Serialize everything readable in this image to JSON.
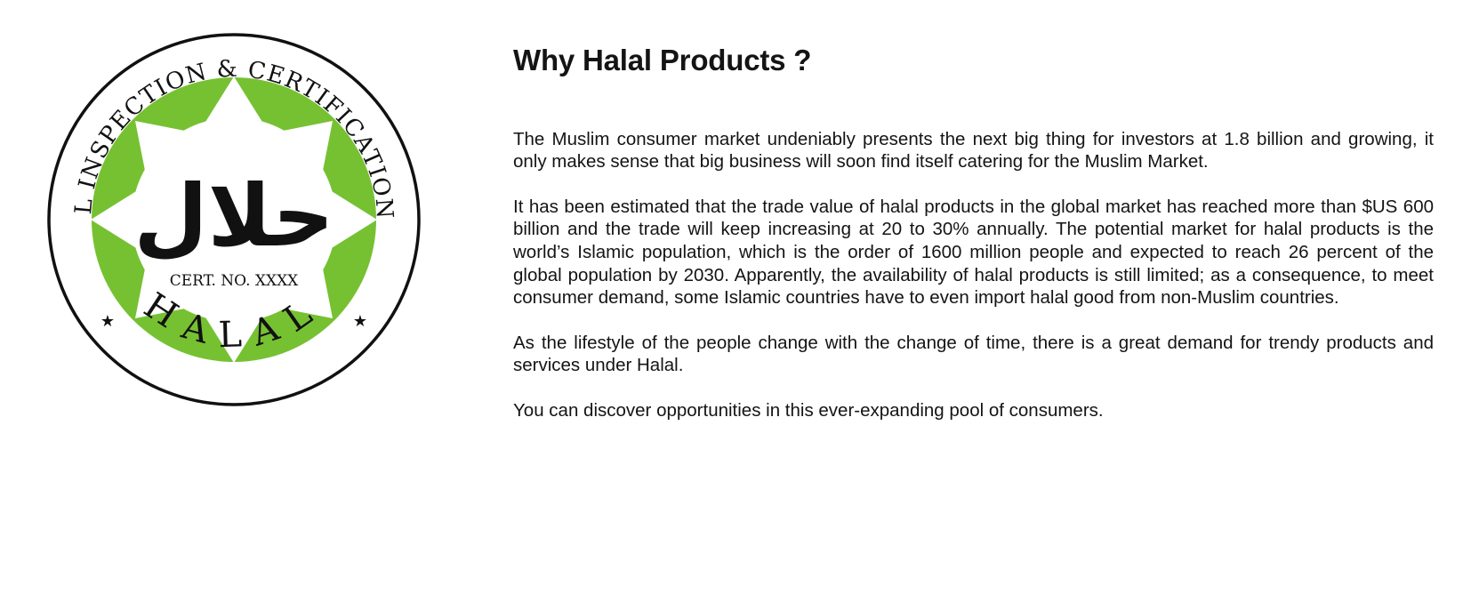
{
  "logo": {
    "top_text": "REGIONAL INSPECTION & CERTIFICATION AGENCY",
    "bottom_text": "HALAL",
    "arabic_text": "حلال",
    "cert_text": "CERT. NO. XXXX",
    "star_left": "★",
    "star_right": "★",
    "colors": {
      "green": "#76c132",
      "ring": "#111111",
      "background": "#ffffff"
    }
  },
  "article": {
    "title_part1": "Why Halal",
    "title_part2": "Products ?",
    "paragraphs": [
      "The Muslim consumer market undeniably presents the next big thing for investors at 1.8 billion and growing, it only makes sense that big business will soon find itself catering for the Muslim Market.",
      "It has been estimated that the trade value of halal products in the global market has reached more than $US 600 billion and the trade will keep increasing at 20 to 30% annually. The potential market for halal products is the world’s Islamic population, which is the order of 1600 million people and expected to reach 26 percent of the global population by 2030. Apparently, the availability of halal products is still limited; as a consequence, to meet consumer demand, some Islamic countries have to even import halal good from non-Muslim coun­tries.",
      "As the lifestyle of the people change with the change of time, there is a great demand for trendy products and services under Halal.",
      "You can discover opportunities in this ever-expanding pool of consumers."
    ]
  }
}
